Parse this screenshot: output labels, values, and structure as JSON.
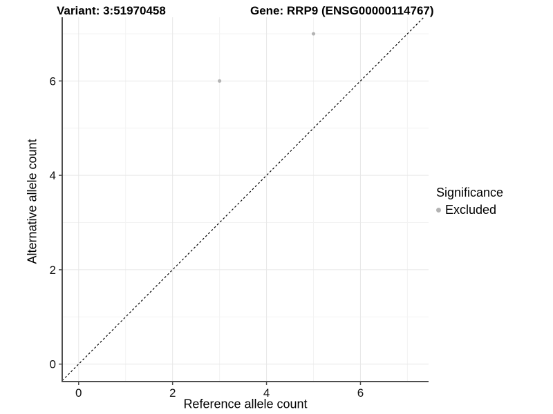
{
  "header": {
    "variant_title": "Variant: 3:51970458",
    "gene_title": "Gene: RRP9 (ENSG00000114767)"
  },
  "legend": {
    "title": "Significance",
    "items": [
      {
        "label": "Excluded",
        "color": "#b3b3b3",
        "marker": "dot"
      }
    ]
  },
  "chart_data": {
    "type": "scatter",
    "xlabel": "Reference allele count",
    "ylabel": "Alternative allele count",
    "xlim": [
      -0.35,
      7.45
    ],
    "ylim": [
      -0.37,
      7.35
    ],
    "xticks": [
      0,
      2,
      4,
      6
    ],
    "yticks": [
      0,
      2,
      4,
      6
    ],
    "minor_xticks": [
      1,
      3,
      5,
      7
    ],
    "minor_yticks": [
      1,
      3,
      5,
      7
    ],
    "grid": "major+minor",
    "legend_position": "right",
    "reference_line": {
      "type": "identity y=x",
      "style": "dashed",
      "color": "#000000"
    },
    "series": [
      {
        "name": "Excluded",
        "color": "#b3b3b3",
        "points": [
          [
            3,
            6
          ],
          [
            5,
            7
          ]
        ]
      }
    ],
    "colors": {
      "grid_major": "#e7e7e7",
      "grid_minor": "#f3f3f3",
      "axis_line": "#4d4d4d",
      "tick_text": "#111111",
      "point": "#b3b3b3"
    }
  }
}
